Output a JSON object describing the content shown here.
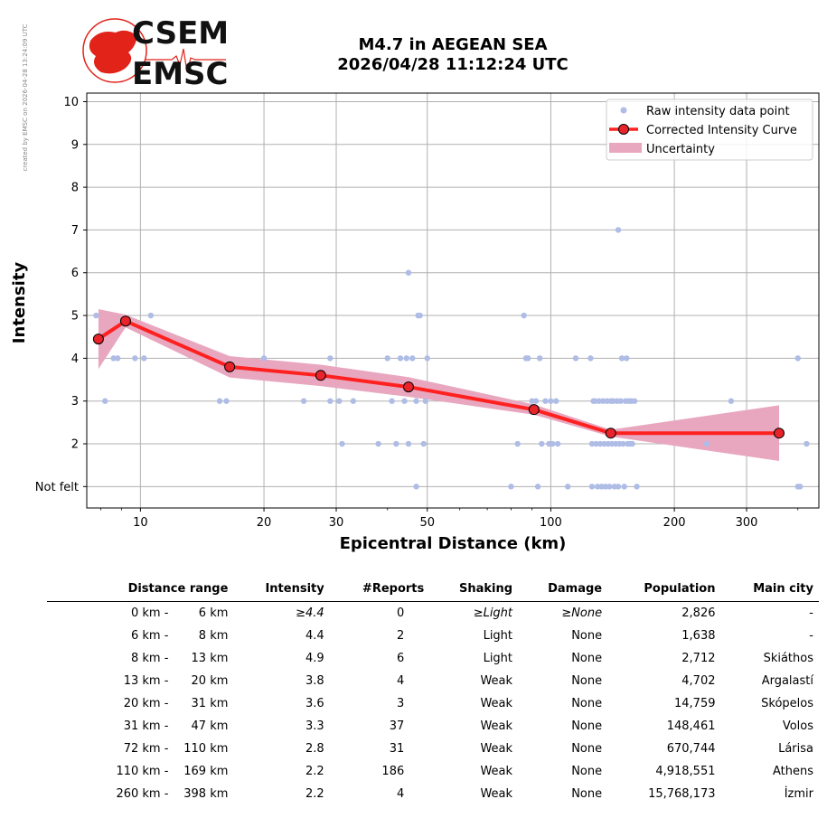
{
  "header": {
    "logo_text_top": "CSEM",
    "logo_text_bottom": "EMSC",
    "title_line1": "M4.7 in AEGEAN SEA",
    "title_line2": "2026/04/28 11:12:24 UTC",
    "watermark": "created by EMSC on 2026-04-28 13:24:09 UTC"
  },
  "colors": {
    "raw_points": "#aebce6",
    "curve": "#ff2020",
    "marker_face": "#e8232a",
    "uncertainty": "#e8a7bf",
    "grid": "#b0b0b0",
    "logo_red": "#e2231a"
  },
  "chart_data": {
    "type": "scatter",
    "xscale": "log",
    "xlim": [
      7.4,
      450
    ],
    "ylim": [
      0.5,
      10.2
    ],
    "xlabel": "Epicentral Distance (km)",
    "ylabel": "Intensity",
    "xticks": [
      10,
      20,
      30,
      50,
      100,
      200,
      300
    ],
    "yticks": [
      1,
      2,
      3,
      4,
      5,
      6,
      7,
      8,
      9,
      10
    ],
    "ytick_labels": [
      "Not felt",
      "2",
      "3",
      "4",
      "5",
      "6",
      "7",
      "8",
      "9",
      "10"
    ],
    "grid": true,
    "legend_position": "top-right",
    "legend": [
      "Raw intensity data point",
      "Corrected Intensity Curve",
      "Uncertainty"
    ],
    "raw_points": [
      [
        7.8,
        5
      ],
      [
        8.2,
        3
      ],
      [
        8.6,
        4
      ],
      [
        8.8,
        4
      ],
      [
        9.7,
        4
      ],
      [
        10.2,
        4
      ],
      [
        10.6,
        5
      ],
      [
        15.6,
        3
      ],
      [
        16.2,
        3
      ],
      [
        20,
        4
      ],
      [
        25,
        3
      ],
      [
        29,
        4
      ],
      [
        29,
        3
      ],
      [
        30.5,
        3
      ],
      [
        31,
        2
      ],
      [
        33,
        3
      ],
      [
        38,
        2
      ],
      [
        40,
        4
      ],
      [
        41,
        3
      ],
      [
        42,
        2
      ],
      [
        43,
        4
      ],
      [
        44,
        3
      ],
      [
        44.5,
        4
      ],
      [
        45,
        2
      ],
      [
        46,
        4
      ],
      [
        47,
        3
      ],
      [
        47.5,
        5
      ],
      [
        48,
        5
      ],
      [
        49,
        2
      ],
      [
        49.5,
        3
      ],
      [
        50,
        4
      ],
      [
        45,
        6
      ],
      [
        47,
        1
      ],
      [
        80,
        1
      ],
      [
        83,
        2
      ],
      [
        86,
        5
      ],
      [
        87,
        4
      ],
      [
        88,
        4
      ],
      [
        90,
        3
      ],
      [
        92,
        3
      ],
      [
        93,
        1
      ],
      [
        94,
        4
      ],
      [
        95,
        2
      ],
      [
        97,
        3
      ],
      [
        99,
        2
      ],
      [
        100,
        3
      ],
      [
        101,
        2
      ],
      [
        103,
        3
      ],
      [
        104,
        2
      ],
      [
        110,
        1
      ],
      [
        115,
        4
      ],
      [
        125,
        4
      ],
      [
        126,
        1
      ],
      [
        126,
        2
      ],
      [
        127,
        3
      ],
      [
        128,
        3
      ],
      [
        129,
        2
      ],
      [
        130,
        1
      ],
      [
        131,
        3
      ],
      [
        132,
        2
      ],
      [
        133,
        1
      ],
      [
        134,
        3
      ],
      [
        135,
        2
      ],
      [
        136,
        1
      ],
      [
        137,
        3
      ],
      [
        138,
        2
      ],
      [
        139,
        1
      ],
      [
        140,
        3
      ],
      [
        141,
        2
      ],
      [
        142,
        3
      ],
      [
        143,
        1
      ],
      [
        144,
        2
      ],
      [
        145,
        3
      ],
      [
        146,
        1
      ],
      [
        147,
        2
      ],
      [
        148,
        3
      ],
      [
        149,
        4
      ],
      [
        150,
        2
      ],
      [
        151,
        1
      ],
      [
        152,
        3
      ],
      [
        153,
        4
      ],
      [
        154,
        2
      ],
      [
        155,
        3
      ],
      [
        156,
        2
      ],
      [
        157,
        3
      ],
      [
        158,
        2
      ],
      [
        160,
        3
      ],
      [
        162,
        1
      ],
      [
        146,
        7
      ],
      [
        240,
        2
      ],
      [
        275,
        3
      ],
      [
        400,
        4
      ],
      [
        400,
        1
      ],
      [
        405,
        1
      ],
      [
        420,
        2
      ]
    ],
    "curve": [
      {
        "x": 7.9,
        "y": 4.45,
        "lo": 3.75,
        "hi": 5.15
      },
      {
        "x": 9.2,
        "y": 4.87,
        "lo": 4.72,
        "hi": 5.02
      },
      {
        "x": 16.5,
        "y": 3.8,
        "lo": 3.55,
        "hi": 4.05
      },
      {
        "x": 27.5,
        "y": 3.6,
        "lo": 3.35,
        "hi": 3.85
      },
      {
        "x": 45,
        "y": 3.33,
        "lo": 3.1,
        "hi": 3.56
      },
      {
        "x": 91,
        "y": 2.8,
        "lo": 2.68,
        "hi": 2.92
      },
      {
        "x": 140,
        "y": 2.25,
        "lo": 2.17,
        "hi": 2.33
      },
      {
        "x": 360,
        "y": 2.25,
        "lo": 1.6,
        "hi": 2.9
      }
    ]
  },
  "table": {
    "headers": [
      "Distance range",
      "Intensity",
      "#Reports",
      "Shaking",
      "Damage",
      "Population",
      "Main city"
    ],
    "rows": [
      {
        "lo": "0 km -",
        "hi": "6 km",
        "intensity": "≥4.4",
        "reports": "0",
        "shaking": "≥Light",
        "damage": "≥None",
        "population": "2,826",
        "city": "-",
        "italic": true
      },
      {
        "lo": "6 km -",
        "hi": "8 km",
        "intensity": "4.4",
        "reports": "2",
        "shaking": "Light",
        "damage": "None",
        "population": "1,638",
        "city": "-"
      },
      {
        "lo": "8 km -",
        "hi": "13 km",
        "intensity": "4.9",
        "reports": "6",
        "shaking": "Light",
        "damage": "None",
        "population": "2,712",
        "city": "Skiáthos"
      },
      {
        "lo": "13 km -",
        "hi": "20 km",
        "intensity": "3.8",
        "reports": "4",
        "shaking": "Weak",
        "damage": "None",
        "population": "4,702",
        "city": "Argalastí"
      },
      {
        "lo": "20 km -",
        "hi": "31 km",
        "intensity": "3.6",
        "reports": "3",
        "shaking": "Weak",
        "damage": "None",
        "population": "14,759",
        "city": "Skópelos"
      },
      {
        "lo": "31 km -",
        "hi": "47 km",
        "intensity": "3.3",
        "reports": "37",
        "shaking": "Weak",
        "damage": "None",
        "population": "148,461",
        "city": "Volos"
      },
      {
        "lo": "72 km -",
        "hi": "110 km",
        "intensity": "2.8",
        "reports": "31",
        "shaking": "Weak",
        "damage": "None",
        "population": "670,744",
        "city": "Lárisa"
      },
      {
        "lo": "110 km -",
        "hi": "169 km",
        "intensity": "2.2",
        "reports": "186",
        "shaking": "Weak",
        "damage": "None",
        "population": "4,918,551",
        "city": "Athens"
      },
      {
        "lo": "260 km -",
        "hi": "398 km",
        "intensity": "2.2",
        "reports": "4",
        "shaking": "Weak",
        "damage": "None",
        "population": "15,768,173",
        "city": "İzmir"
      }
    ]
  }
}
